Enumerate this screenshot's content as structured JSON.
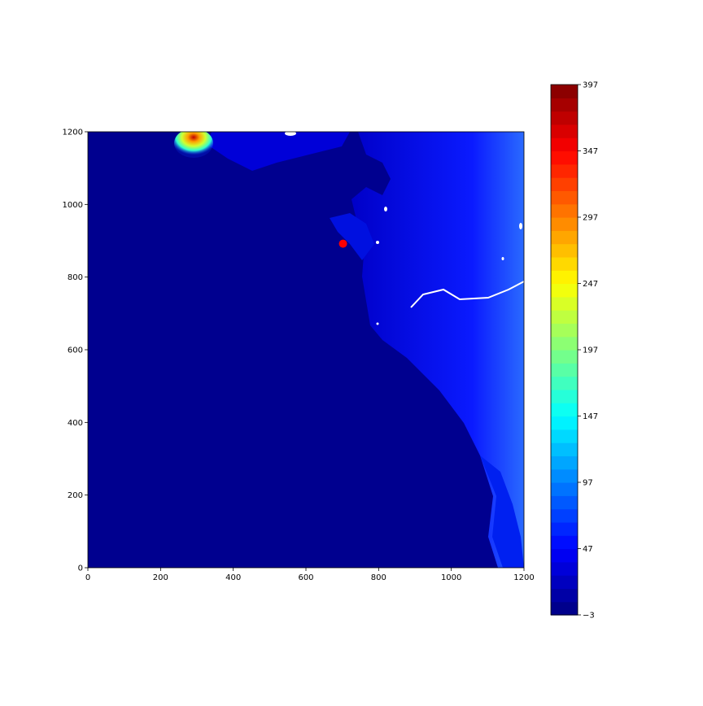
{
  "chart_data": {
    "type": "heatmap",
    "title": "",
    "xlabel": "",
    "ylabel": "",
    "xlim": [
      0,
      1200
    ],
    "ylim": [
      0,
      1200
    ],
    "x_ticks": [
      "0",
      "200",
      "400",
      "600",
      "800",
      "1000",
      "1200"
    ],
    "y_ticks": [
      "0",
      "200",
      "400",
      "600",
      "800",
      "1000",
      "1200"
    ],
    "colormap": "jet",
    "colorbar": {
      "range": [
        -3,
        397
      ],
      "levels": 40,
      "ticks": [
        "−3",
        "47",
        "97",
        "147",
        "197",
        "247",
        "297",
        "347",
        "397"
      ],
      "placement": "right"
    },
    "marker": {
      "x": 702,
      "y": 892,
      "color": "#ff0000"
    },
    "colors": {
      "sea": "#00008f",
      "lowland": "#0000cc",
      "upland": "#0a3aff",
      "nodata": "#ffffff"
    }
  }
}
